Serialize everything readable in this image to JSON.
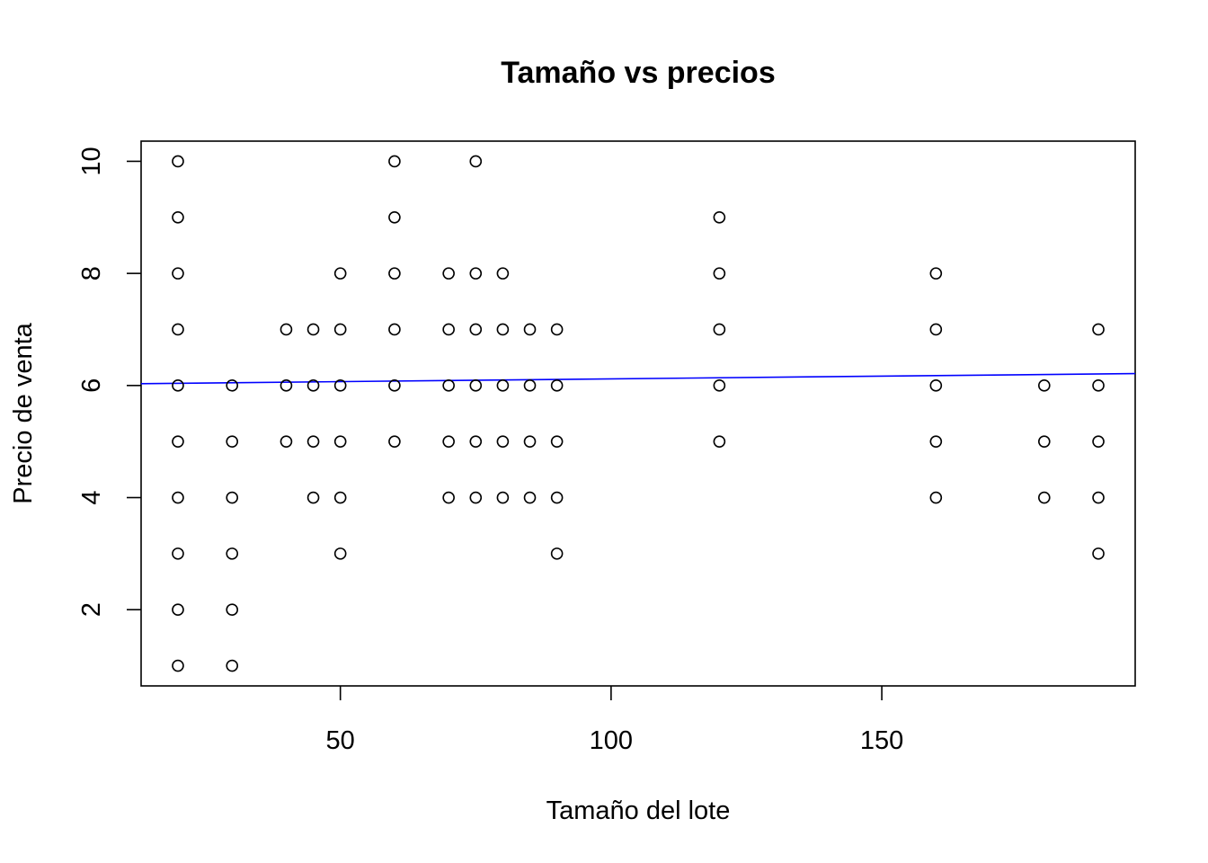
{
  "chart_data": {
    "type": "scatter",
    "title": "Tamaño vs precios",
    "xlabel": "Tamaño del lote",
    "ylabel": "Precio de venta",
    "xlim": [
      13.2,
      196.8
    ],
    "ylim": [
      0.64,
      10.36
    ],
    "x_ticks": [
      50,
      100,
      150
    ],
    "y_ticks": [
      2,
      4,
      6,
      8,
      10
    ],
    "grid": false,
    "legend": "none",
    "point_color": "#000000",
    "line_color": "#0000ff",
    "points": [
      {
        "x": 20,
        "y": 10
      },
      {
        "x": 20,
        "y": 9
      },
      {
        "x": 20,
        "y": 8
      },
      {
        "x": 20,
        "y": 7
      },
      {
        "x": 20,
        "y": 6
      },
      {
        "x": 20,
        "y": 5
      },
      {
        "x": 20,
        "y": 4
      },
      {
        "x": 20,
        "y": 3
      },
      {
        "x": 20,
        "y": 2
      },
      {
        "x": 20,
        "y": 1
      },
      {
        "x": 30,
        "y": 6
      },
      {
        "x": 30,
        "y": 5
      },
      {
        "x": 30,
        "y": 4
      },
      {
        "x": 30,
        "y": 3
      },
      {
        "x": 30,
        "y": 2
      },
      {
        "x": 30,
        "y": 1
      },
      {
        "x": 40,
        "y": 7
      },
      {
        "x": 40,
        "y": 6
      },
      {
        "x": 40,
        "y": 5
      },
      {
        "x": 45,
        "y": 7
      },
      {
        "x": 45,
        "y": 6
      },
      {
        "x": 45,
        "y": 5
      },
      {
        "x": 45,
        "y": 4
      },
      {
        "x": 50,
        "y": 8
      },
      {
        "x": 50,
        "y": 7
      },
      {
        "x": 50,
        "y": 6
      },
      {
        "x": 50,
        "y": 5
      },
      {
        "x": 50,
        "y": 4
      },
      {
        "x": 50,
        "y": 3
      },
      {
        "x": 60,
        "y": 10
      },
      {
        "x": 60,
        "y": 9
      },
      {
        "x": 60,
        "y": 8
      },
      {
        "x": 60,
        "y": 7
      },
      {
        "x": 60,
        "y": 6
      },
      {
        "x": 60,
        "y": 5
      },
      {
        "x": 70,
        "y": 8
      },
      {
        "x": 70,
        "y": 7
      },
      {
        "x": 70,
        "y": 6
      },
      {
        "x": 70,
        "y": 5
      },
      {
        "x": 70,
        "y": 4
      },
      {
        "x": 75,
        "y": 10
      },
      {
        "x": 75,
        "y": 8
      },
      {
        "x": 75,
        "y": 7
      },
      {
        "x": 75,
        "y": 6
      },
      {
        "x": 75,
        "y": 5
      },
      {
        "x": 75,
        "y": 4
      },
      {
        "x": 80,
        "y": 8
      },
      {
        "x": 80,
        "y": 7
      },
      {
        "x": 80,
        "y": 6
      },
      {
        "x": 80,
        "y": 5
      },
      {
        "x": 80,
        "y": 4
      },
      {
        "x": 85,
        "y": 7
      },
      {
        "x": 85,
        "y": 6
      },
      {
        "x": 85,
        "y": 5
      },
      {
        "x": 85,
        "y": 4
      },
      {
        "x": 90,
        "y": 7
      },
      {
        "x": 90,
        "y": 6
      },
      {
        "x": 90,
        "y": 5
      },
      {
        "x": 90,
        "y": 4
      },
      {
        "x": 90,
        "y": 3
      },
      {
        "x": 120,
        "y": 9
      },
      {
        "x": 120,
        "y": 8
      },
      {
        "x": 120,
        "y": 7
      },
      {
        "x": 120,
        "y": 6
      },
      {
        "x": 120,
        "y": 5
      },
      {
        "x": 160,
        "y": 8
      },
      {
        "x": 160,
        "y": 7
      },
      {
        "x": 160,
        "y": 6
      },
      {
        "x": 160,
        "y": 5
      },
      {
        "x": 160,
        "y": 4
      },
      {
        "x": 180,
        "y": 6
      },
      {
        "x": 180,
        "y": 5
      },
      {
        "x": 180,
        "y": 4
      },
      {
        "x": 190,
        "y": 7
      },
      {
        "x": 190,
        "y": 6
      },
      {
        "x": 190,
        "y": 5
      },
      {
        "x": 190,
        "y": 4
      },
      {
        "x": 190,
        "y": 3
      }
    ],
    "regression_line": {
      "intercept": 6.02,
      "slope": 0.00098
    }
  }
}
